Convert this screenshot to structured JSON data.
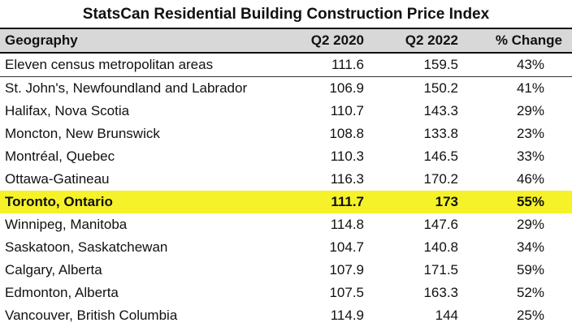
{
  "chart_data": {
    "type": "table",
    "title": "StatsCan Residential Building Construction Price Index",
    "columns": [
      "Geography",
      "Q2 2020",
      "Q2 2022",
      "% Change"
    ],
    "rows": [
      {
        "geography": "Eleven census metropolitan areas",
        "q2_2020": "111.6",
        "q2_2022": "159.5",
        "change": "43%"
      },
      {
        "geography": "St. John's, Newfoundland and Labrador",
        "q2_2020": "106.9",
        "q2_2022": "150.2",
        "change": "41%"
      },
      {
        "geography": "Halifax, Nova Scotia",
        "q2_2020": "110.7",
        "q2_2022": "143.3",
        "change": "29%"
      },
      {
        "geography": "Moncton, New Brunswick",
        "q2_2020": "108.8",
        "q2_2022": "133.8",
        "change": "23%"
      },
      {
        "geography": "Montréal, Quebec",
        "q2_2020": "110.3",
        "q2_2022": "146.5",
        "change": "33%"
      },
      {
        "geography": "Ottawa-Gatineau",
        "q2_2020": "116.3",
        "q2_2022": "170.2",
        "change": "46%"
      },
      {
        "geography": "Toronto, Ontario",
        "q2_2020": "111.7",
        "q2_2022": "173",
        "change": "55%",
        "highlighted": true
      },
      {
        "geography": "Winnipeg, Manitoba",
        "q2_2020": "114.8",
        "q2_2022": "147.6",
        "change": "29%"
      },
      {
        "geography": "Saskatoon, Saskatchewan",
        "q2_2020": "104.7",
        "q2_2022": "140.8",
        "change": "34%"
      },
      {
        "geography": "Calgary, Alberta",
        "q2_2020": "107.9",
        "q2_2022": "171.5",
        "change": "59%"
      },
      {
        "geography": "Edmonton, Alberta",
        "q2_2020": "107.5",
        "q2_2022": "163.3",
        "change": "52%"
      },
      {
        "geography": "Vancouver, British Columbia",
        "q2_2020": "114.9",
        "q2_2022": "144",
        "change": "25%"
      }
    ],
    "highlight_color": "#f6f22a",
    "header_color": "#d8d8d8"
  }
}
